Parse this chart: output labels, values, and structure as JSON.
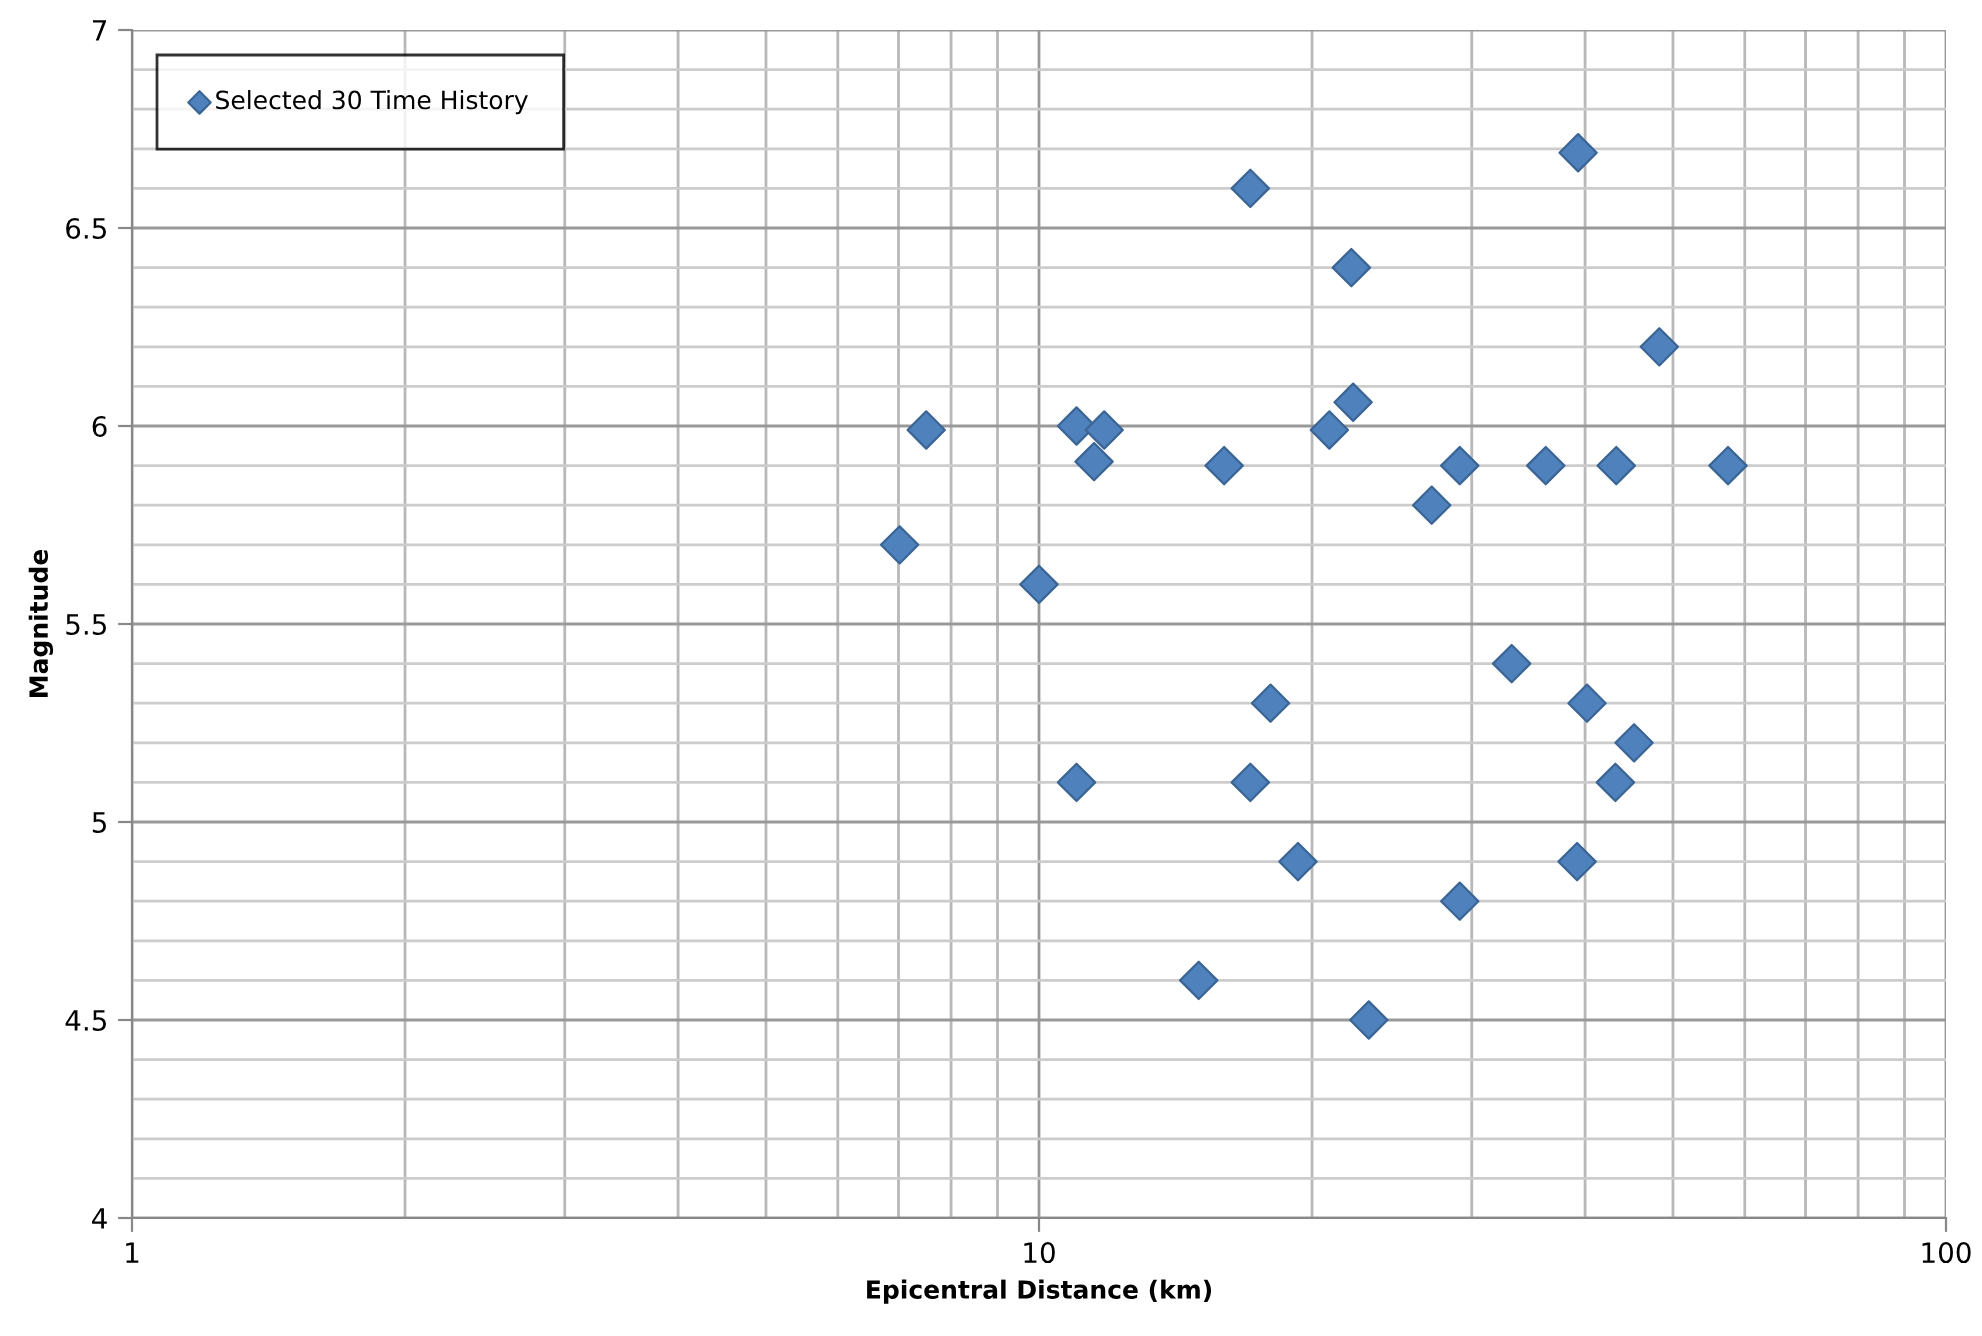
{
  "chart_data": {
    "type": "scatter",
    "xlabel": "Epicentral Distance (km)",
    "ylabel": "Magnitude",
    "log": "x",
    "xlim": [
      1,
      100
    ],
    "xticks": [
      1,
      10,
      100
    ],
    "ylim": [
      4,
      7
    ],
    "yticks": [
      4,
      4.5,
      5,
      5.5,
      6,
      6.5,
      7
    ],
    "grid": true,
    "legend": "top left",
    "marker": "diamond",
    "series": [
      {
        "name": "Selected 30 Time History",
        "color": "#4f81bd",
        "x": [
          39.3,
          17.1,
          22.1,
          48.3,
          22.2,
          7.51,
          11.0,
          11.8,
          20.9,
          11.5,
          16.0,
          29.1,
          36.2,
          43.3,
          57.5,
          27.1,
          7.02,
          10.0,
          33.2,
          18.0,
          40.2,
          45.3,
          11.0,
          17.1,
          43.2,
          19.3,
          39.2,
          29.1,
          15.0,
          23.1
        ],
        "values": [
          6.69,
          6.6,
          6.4,
          6.2,
          6.06,
          5.99,
          6.0,
          5.99,
          5.99,
          5.91,
          5.9,
          5.9,
          5.9,
          5.9,
          5.9,
          5.8,
          5.7,
          5.6,
          5.4,
          5.3,
          5.3,
          5.2,
          5.1,
          5.1,
          5.1,
          4.9,
          4.9,
          4.8,
          4.6,
          4.5
        ]
      }
    ]
  }
}
